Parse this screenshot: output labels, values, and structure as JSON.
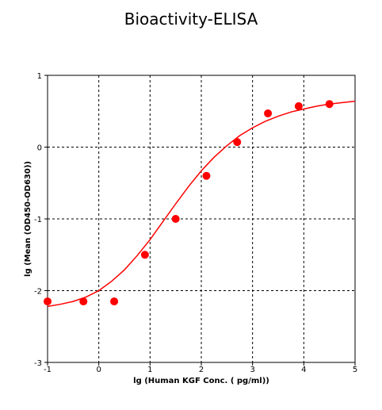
{
  "chart_data": {
    "type": "scatter",
    "title": "Bioactivity-ELISA",
    "xlabel": "lg (Human KGF Conc.  ( pg/ml))",
    "ylabel": "lg (Mean (OD450-OD630))",
    "xlim": [
      -1,
      5
    ],
    "ylim": [
      -3,
      1
    ],
    "x_ticks": [
      -1,
      0,
      1,
      2,
      3,
      4,
      5
    ],
    "y_ticks": [
      -3,
      -2,
      -1,
      0,
      1
    ],
    "x_tick_labels": [
      "-1",
      "0",
      "1",
      "2",
      "3",
      "4",
      "5"
    ],
    "y_tick_labels": [
      "-3",
      "-2",
      "-1",
      "0",
      "1"
    ],
    "grid": true,
    "series": [
      {
        "type": "scatter",
        "x": [
          -1.0,
          -0.3,
          0.3,
          0.9,
          1.5,
          2.1,
          2.7,
          3.3,
          3.9,
          4.5
        ],
        "y": [
          -2.15,
          -2.15,
          -2.15,
          -1.5,
          -1.0,
          -0.4,
          0.07,
          0.47,
          0.57,
          0.6
        ]
      },
      {
        "type": "line",
        "x": [
          -1.0,
          -0.75,
          -0.5,
          -0.25,
          0.0,
          0.25,
          0.5,
          0.75,
          1.0,
          1.25,
          1.5,
          1.75,
          2.0,
          2.25,
          2.5,
          2.75,
          3.0,
          3.25,
          3.5,
          3.75,
          4.0,
          4.25,
          4.5,
          4.75,
          5.0
        ],
        "y": [
          -2.22,
          -2.19,
          -2.15,
          -2.09,
          -2.0,
          -1.87,
          -1.71,
          -1.51,
          -1.29,
          -1.04,
          -0.79,
          -0.55,
          -0.33,
          -0.14,
          0.02,
          0.16,
          0.27,
          0.36,
          0.43,
          0.49,
          0.53,
          0.57,
          0.6,
          0.62,
          0.64
        ]
      }
    ],
    "colors": {
      "series": "#ff0000",
      "grid": "#000000",
      "axis": "#000000"
    }
  }
}
